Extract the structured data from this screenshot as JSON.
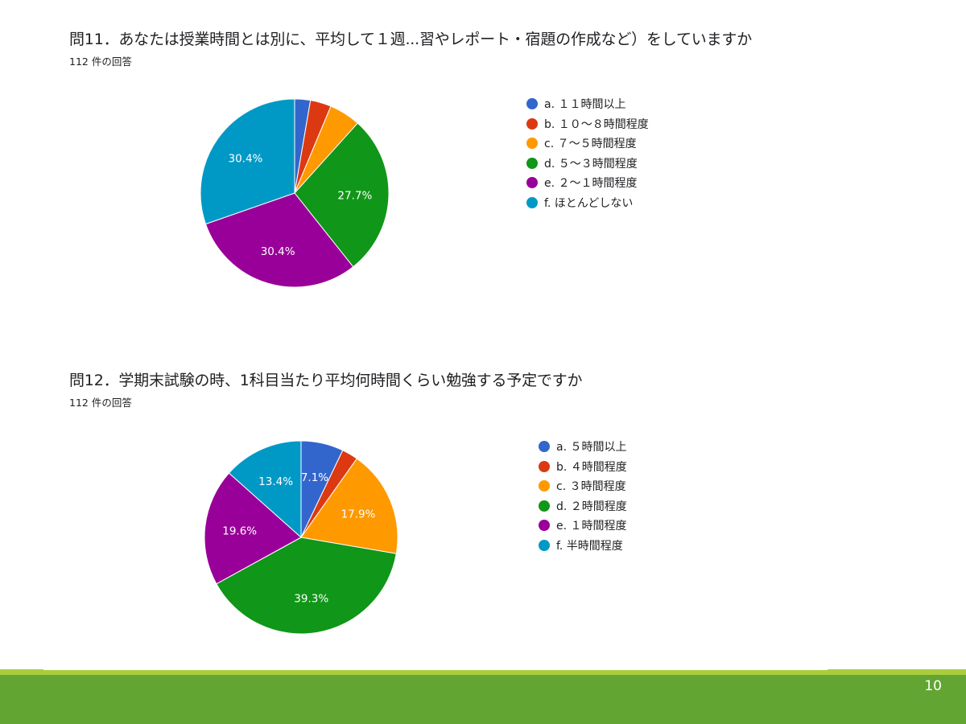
{
  "chart_data": [
    {
      "type": "pie",
      "title": "問11．あなたは授業時間とは別に、平均して１週...習やレポート・宿題の作成など）をしていますか",
      "subtitle": "112 件の回答",
      "start_angle_deg": 90,
      "direction": "clockwise",
      "labels": [
        "a. １１時間以上",
        "b. １０～８時間程度",
        "c. ７～５時間程度",
        "d. ５～３時間程度",
        "e. ２～１時間程度",
        "f. ほとんどしない"
      ],
      "values": [
        2.7,
        3.6,
        5.4,
        27.7,
        30.4,
        30.4
      ],
      "shown_labels": [
        "",
        "",
        "",
        "27.7%",
        "30.4%",
        "30.4%"
      ],
      "colors": [
        "#3366cc",
        "#dc3912",
        "#ff9900",
        "#109618",
        "#990099",
        "#0099c6"
      ],
      "legend_position": "right"
    },
    {
      "type": "pie",
      "title": "問12．学期末試験の時、1科目当たり平均何時間くらい勉強する予定ですか",
      "subtitle": "112 件の回答",
      "start_angle_deg": 90,
      "direction": "clockwise",
      "labels": [
        "a. ５時間以上",
        "b. ４時間程度",
        "c. ３時間程度",
        "d. ２時間程度",
        "e. １時間程度",
        "f. 半時間程度"
      ],
      "values": [
        7.1,
        2.7,
        17.9,
        39.3,
        19.6,
        13.4
      ],
      "shown_labels": [
        "7.1%",
        "",
        "17.9%",
        "39.3%",
        "19.6%",
        "13.4%"
      ],
      "colors": [
        "#3366cc",
        "#dc3912",
        "#ff9900",
        "#109618",
        "#990099",
        "#0099c6"
      ],
      "legend_position": "right"
    }
  ],
  "page": {
    "number": "10"
  }
}
